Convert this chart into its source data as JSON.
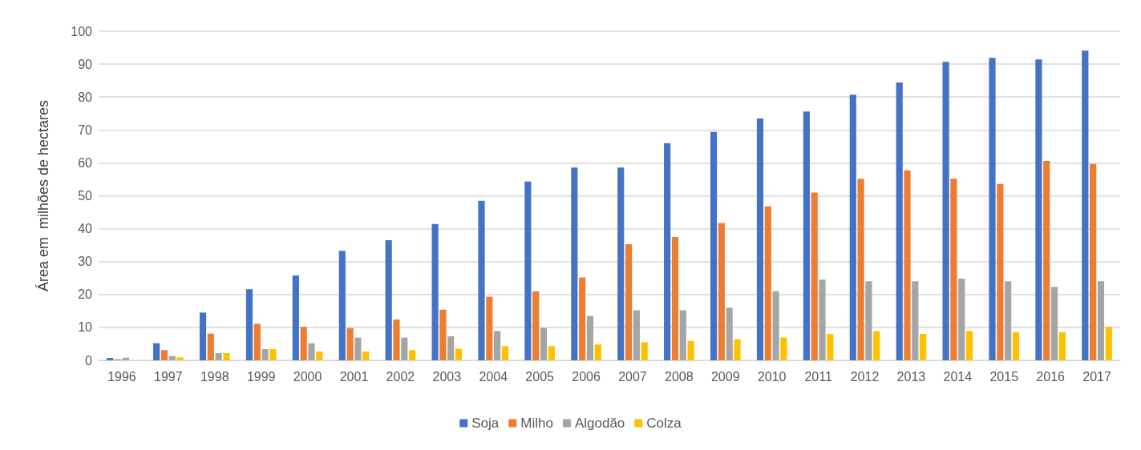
{
  "chart_data": {
    "type": "bar",
    "ylabel": "Área em  milhões de hectares",
    "categories": [
      "1996",
      "1997",
      "1998",
      "1999",
      "2000",
      "2001",
      "2002",
      "2003",
      "2004",
      "2005",
      "2006",
      "2007",
      "2008",
      "2009",
      "2010",
      "2011",
      "2012",
      "2013",
      "2014",
      "2015",
      "2016",
      "2017"
    ],
    "series": [
      {
        "name": "Soja",
        "color": "#4472c4",
        "values": [
          0.7,
          5.2,
          14.5,
          21.6,
          25.8,
          33.3,
          36.5,
          41.4,
          48.5,
          54.3,
          58.6,
          58.6,
          66.0,
          69.4,
          73.5,
          75.6,
          80.7,
          84.4,
          90.7,
          91.9,
          91.4,
          94.1
        ]
      },
      {
        "name": "Milho",
        "color": "#ed7d31",
        "values": [
          0.3,
          3.1,
          8.1,
          11.1,
          10.2,
          9.8,
          12.4,
          15.4,
          19.3,
          21.0,
          25.2,
          35.3,
          37.5,
          41.7,
          46.8,
          51.0,
          55.2,
          57.7,
          55.2,
          53.6,
          60.6,
          59.7
        ]
      },
      {
        "name": "Algodão",
        "color": "#a5a5a5",
        "values": [
          0.8,
          1.3,
          2.2,
          3.4,
          5.2,
          6.9,
          6.9,
          7.3,
          8.9,
          9.8,
          13.5,
          15.2,
          15.2,
          16.0,
          21.0,
          24.5,
          24.0,
          24.0,
          24.8,
          24.0,
          22.3,
          24.0
        ]
      },
      {
        "name": "Colza",
        "color": "#ffc000",
        "values": [
          null,
          0.9,
          2.2,
          3.4,
          2.7,
          2.7,
          3.1,
          3.5,
          4.3,
          4.3,
          4.8,
          5.5,
          5.9,
          6.4,
          6.9,
          8.0,
          8.9,
          8.0,
          8.9,
          8.5,
          8.5,
          10.2
        ]
      }
    ],
    "ylim": [
      0,
      100
    ],
    "yticks": [
      0,
      10,
      20,
      30,
      40,
      50,
      60,
      70,
      80,
      90,
      100
    ],
    "grid": "y",
    "legend": "bottom"
  }
}
